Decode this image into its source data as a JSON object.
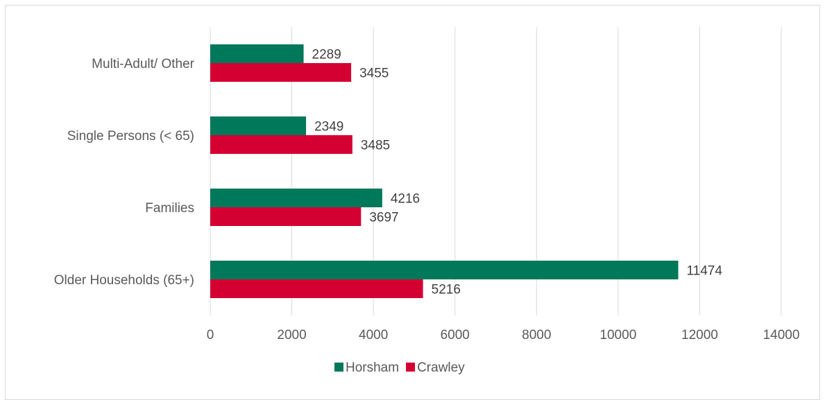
{
  "chart_data": {
    "type": "bar",
    "orientation": "horizontal",
    "categories": [
      "Older Households (65+)",
      "Families",
      "Single Persons (< 65)",
      "Multi-Adult/ Other"
    ],
    "series": [
      {
        "name": "Horsham",
        "color": "#00785a",
        "values": [
          11474,
          4216,
          2349,
          2289
        ]
      },
      {
        "name": "Crawley",
        "color": "#d50032",
        "values": [
          5216,
          3697,
          3485,
          3455
        ]
      }
    ],
    "xlim": [
      0,
      14000
    ],
    "xticks": [
      0,
      2000,
      4000,
      6000,
      8000,
      10000,
      12000,
      14000
    ],
    "grid": true,
    "legend_position": "bottom",
    "data_labels": true,
    "title": "",
    "xlabel": "",
    "ylabel": ""
  }
}
